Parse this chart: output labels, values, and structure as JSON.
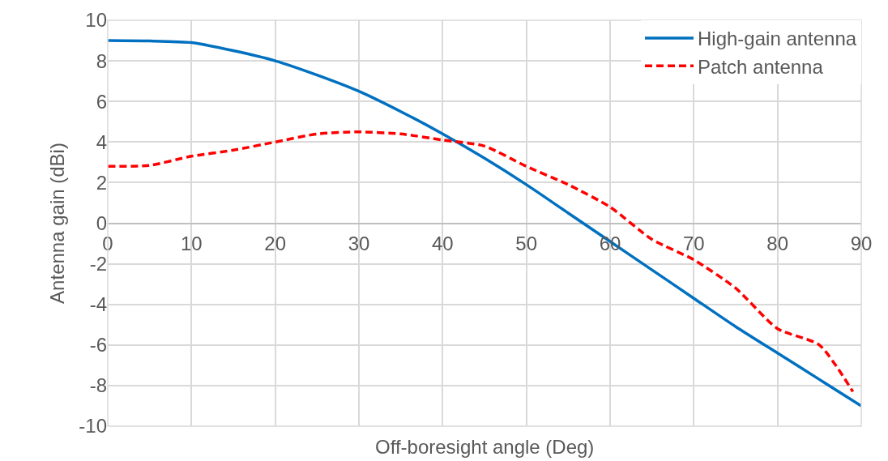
{
  "chart_data": {
    "type": "line",
    "xlabel": "Off-boresight angle (Deg)",
    "ylabel": "Antenna gain (dBi)",
    "x": [
      0,
      5,
      10,
      15,
      20,
      25,
      30,
      35,
      40,
      45,
      50,
      55,
      60,
      65,
      70,
      75,
      80,
      85,
      90
    ],
    "series": [
      {
        "name": "High-gain antenna",
        "color": "#0070c0",
        "line_style": "solid",
        "values": [
          9.0,
          8.98,
          8.9,
          8.5,
          8.0,
          7.3,
          6.5,
          5.5,
          4.4,
          3.2,
          1.9,
          0.5,
          -0.9,
          -2.3,
          -3.7,
          -5.1,
          -6.4,
          -7.7,
          -9.0
        ]
      },
      {
        "name": "Patch antenna",
        "color": "#ff0000",
        "line_style": "dashed",
        "x": [
          0,
          5,
          10,
          15,
          20,
          25,
          30,
          35,
          40,
          45,
          50,
          55,
          60,
          65,
          70,
          75,
          80,
          85,
          89
        ],
        "values": [
          2.8,
          2.85,
          3.3,
          3.6,
          4.0,
          4.4,
          4.5,
          4.4,
          4.1,
          3.8,
          2.8,
          1.9,
          0.8,
          -0.8,
          -1.8,
          -3.2,
          -5.2,
          -6.0,
          -8.3
        ]
      }
    ],
    "xlim": [
      0,
      90
    ],
    "xticks": [
      0,
      10,
      20,
      30,
      40,
      50,
      60,
      70,
      80,
      90
    ],
    "ylim": [
      -10,
      10
    ],
    "yticks": [
      -10,
      -8,
      -6,
      -4,
      -2,
      0,
      2,
      4,
      6,
      8,
      10
    ],
    "grid": true,
    "legend": "top right",
    "marker": "none"
  }
}
